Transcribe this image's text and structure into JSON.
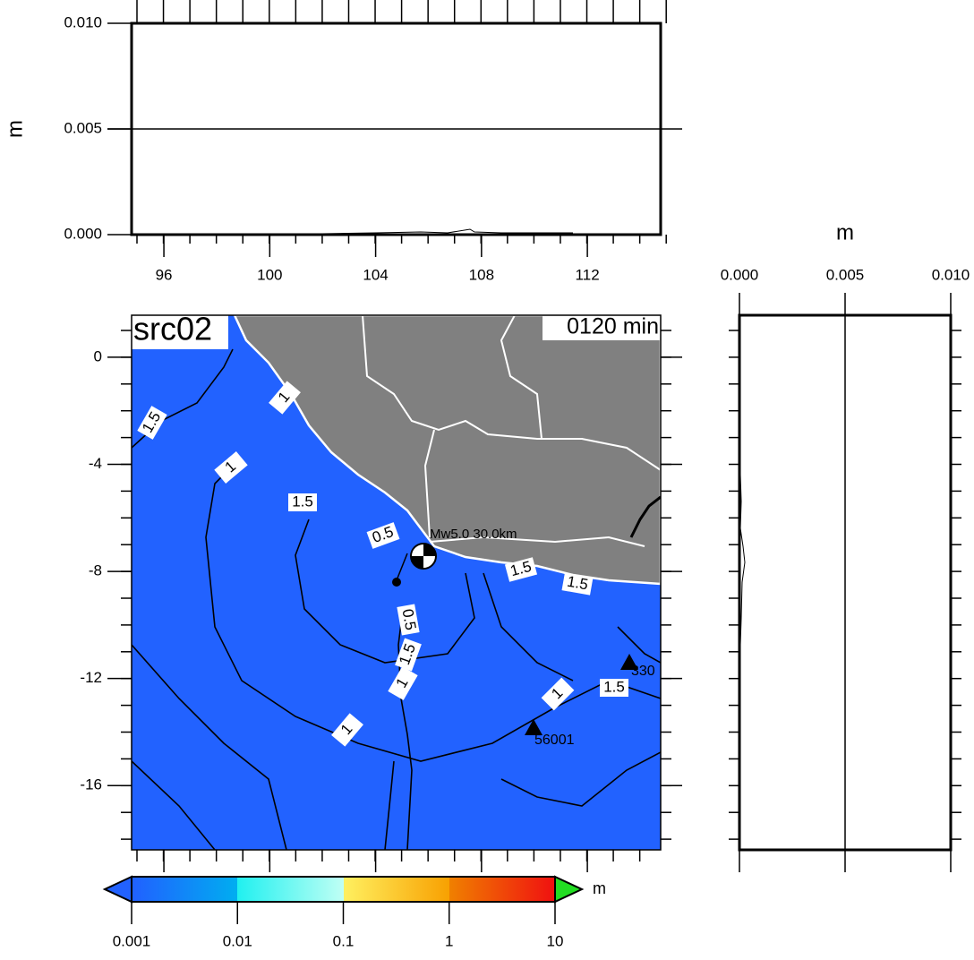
{
  "top_panel": {
    "y_label": "m",
    "ylim": [
      0,
      0.01
    ],
    "yticks": [
      {
        "value": 0,
        "label": "0.000"
      },
      {
        "value": 0.005,
        "label": "0.005"
      },
      {
        "value": 0.01,
        "label": "0.010"
      }
    ],
    "xlim": [
      94.78,
      114.77
    ],
    "xticks": [
      96,
      100,
      104,
      108,
      112
    ]
  },
  "map": {
    "title": "src02",
    "time": "0120 min",
    "ylim": [
      1.57,
      -18.4
    ],
    "yticks": [
      0,
      -4,
      -8,
      -12,
      -16
    ],
    "source_label": "Mw5.0 30.0km",
    "contour_labels": [
      1.5,
      1,
      1,
      1.5,
      0.5,
      1.5,
      1.5,
      0.5,
      1.5,
      1,
      1,
      1.5,
      1
    ],
    "stations": [
      "56001",
      "330"
    ]
  },
  "right_panel": {
    "x_label": "m",
    "xlim": [
      0,
      0.01
    ],
    "xticks": [
      {
        "value": 0,
        "label": "0.000"
      },
      {
        "value": 0.005,
        "label": "0.005"
      },
      {
        "value": 0.01,
        "label": "0.010"
      }
    ]
  },
  "colorbar": {
    "unit": "m",
    "scale": "log",
    "ticks": [
      0.001,
      0.01,
      0.1,
      1,
      10
    ]
  }
}
